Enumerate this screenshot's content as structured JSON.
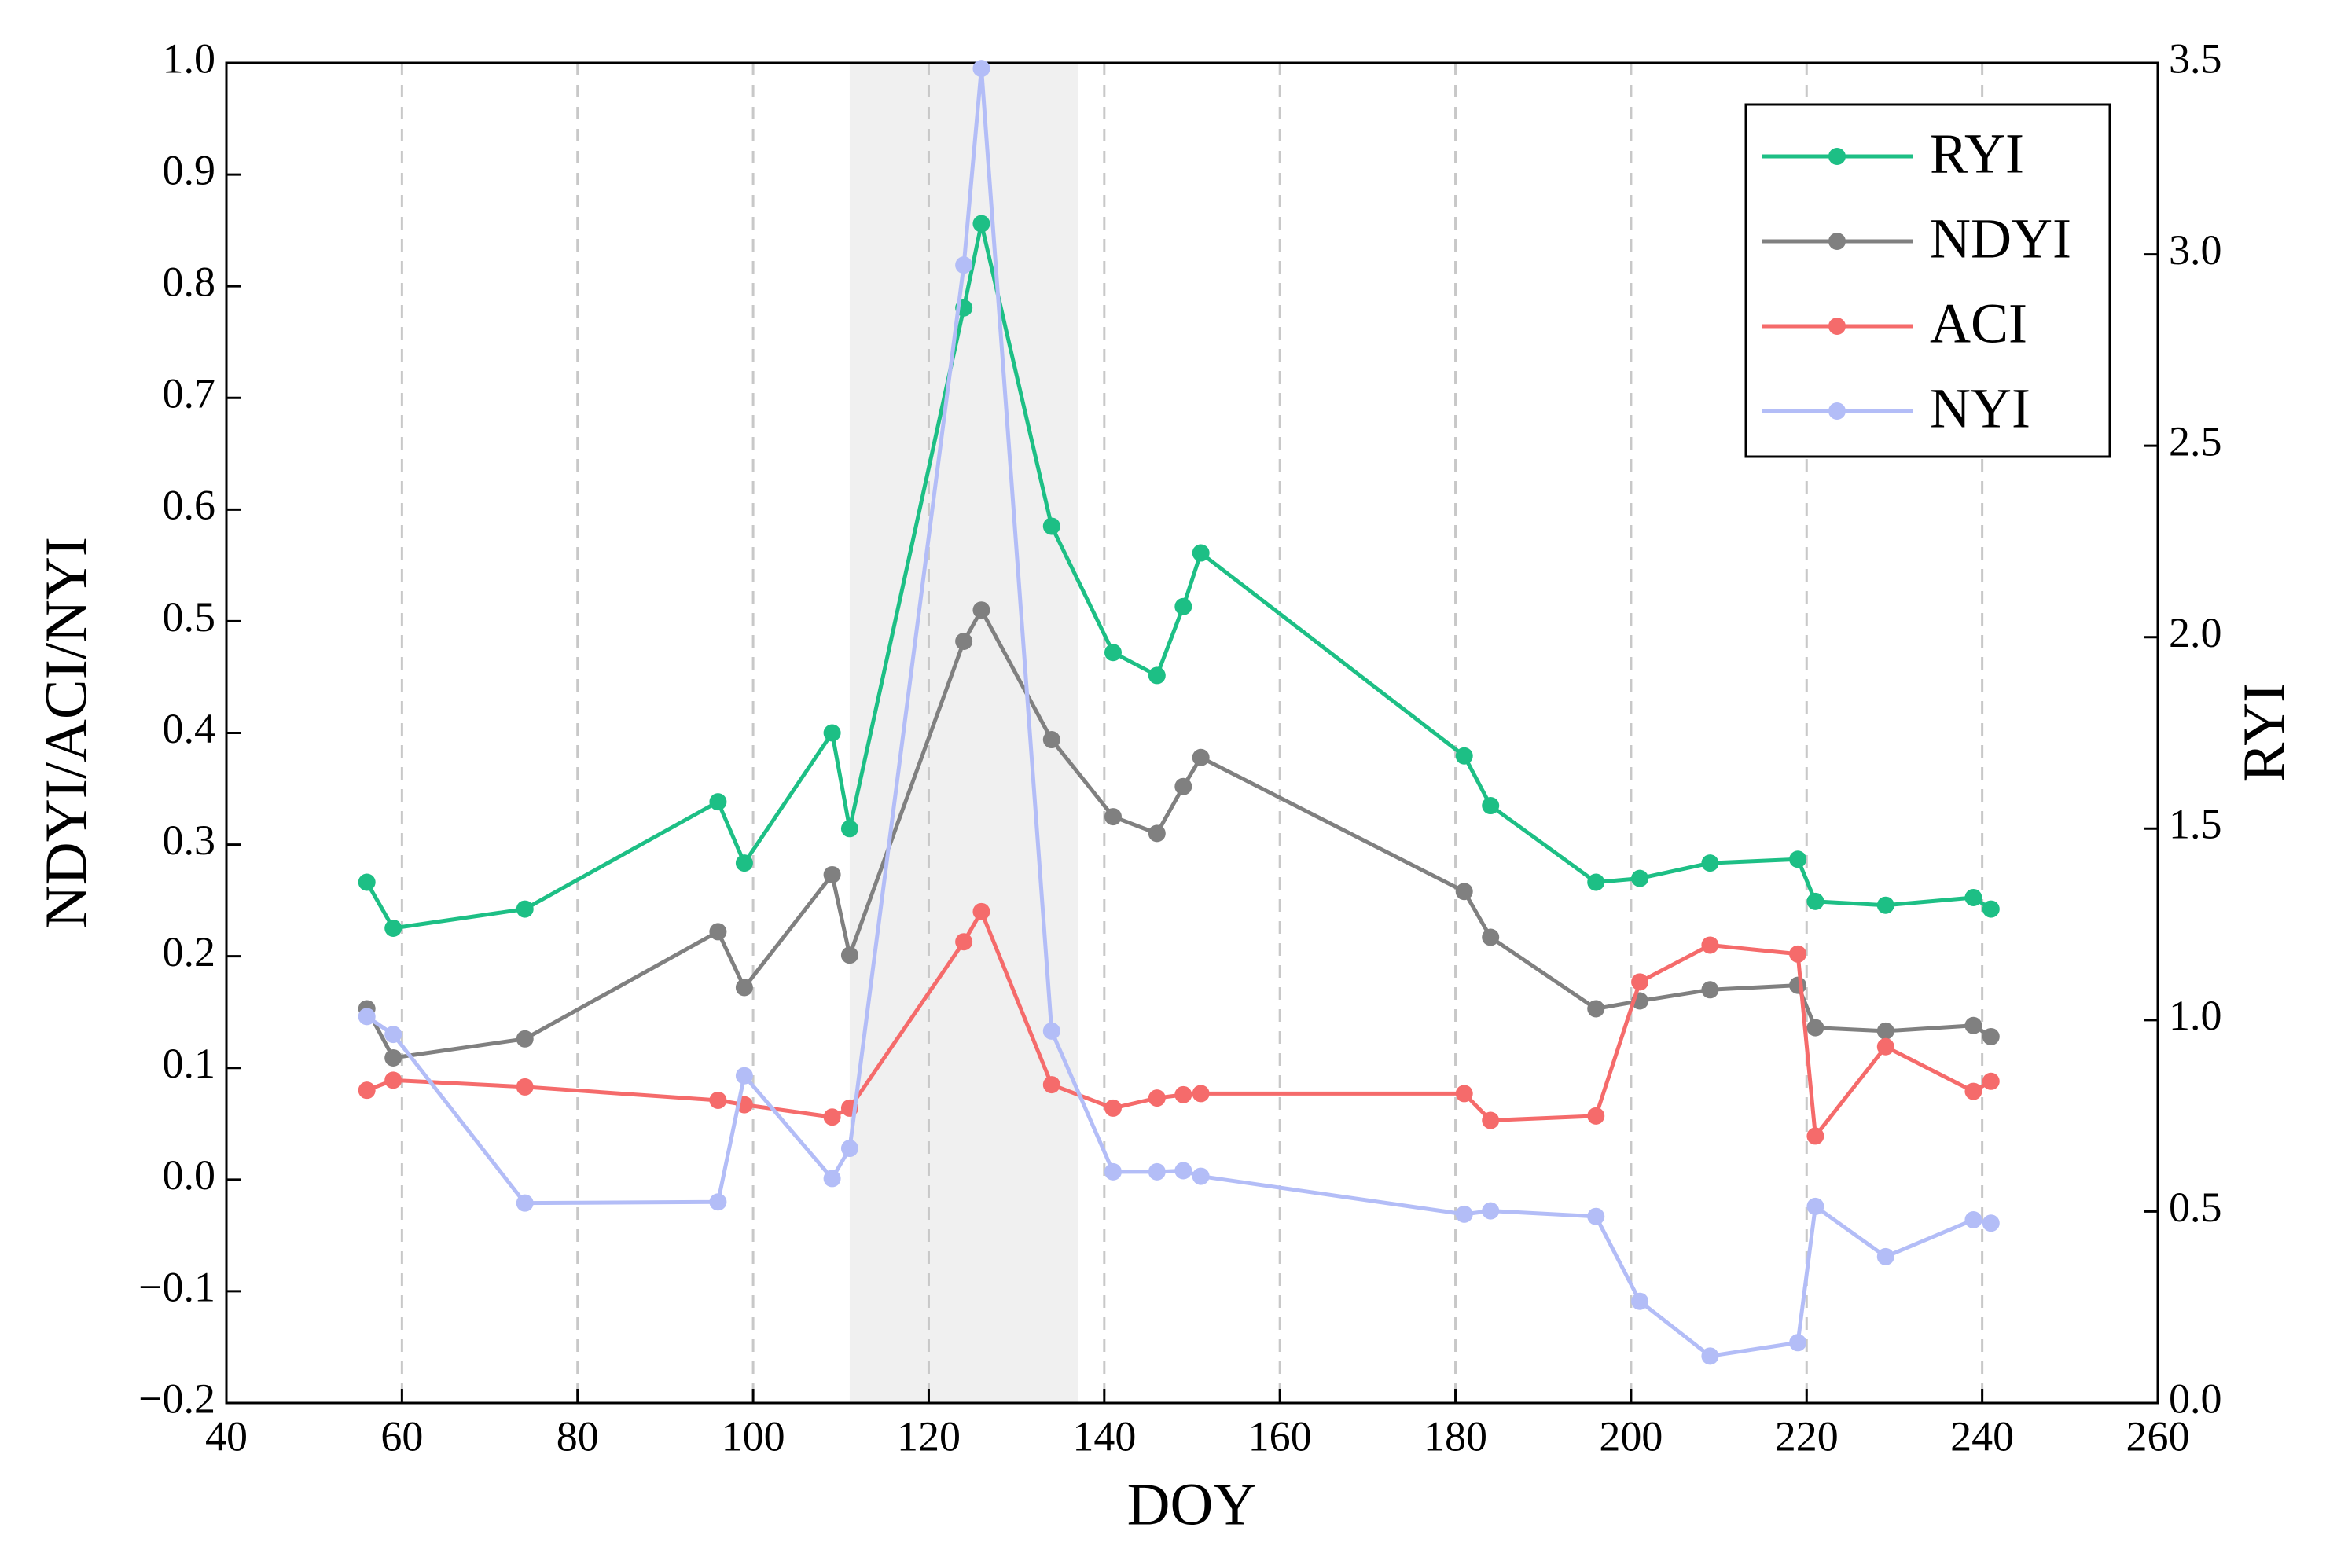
{
  "chart_data": {
    "type": "line",
    "x_label": "DOY",
    "y_label": "NDYI/ACI/NYI",
    "y2_label": "RYI",
    "x": [
      56,
      59,
      74,
      96,
      99,
      109,
      111,
      124,
      126,
      134,
      141,
      146,
      149,
      151,
      181,
      184,
      196,
      201,
      209,
      219,
      221,
      229,
      239,
      241
    ],
    "series": [
      {
        "name": "RYI",
        "color": "#1dbf85",
        "axis": "y2",
        "values": [
          1.36,
          1.24,
          1.29,
          1.57,
          1.41,
          1.75,
          1.5,
          2.86,
          3.08,
          2.29,
          1.96,
          1.9,
          2.08,
          2.22,
          1.69,
          1.56,
          1.36,
          1.37,
          1.41,
          1.42,
          1.31,
          1.3,
          1.32,
          1.29
        ]
      },
      {
        "name": "NDYI",
        "color": "#808080",
        "values": [
          0.153,
          0.109,
          0.126,
          0.222,
          0.172,
          0.273,
          0.201,
          0.482,
          0.51,
          0.394,
          0.325,
          0.31,
          0.352,
          0.378,
          0.258,
          0.217,
          0.153,
          0.16,
          0.17,
          0.174,
          0.136,
          0.133,
          0.138,
          0.128
        ]
      },
      {
        "name": "ACI",
        "color": "#f56b6b",
        "values": [
          0.08,
          0.089,
          0.083,
          0.071,
          0.067,
          0.056,
          0.064,
          0.213,
          0.24,
          0.085,
          0.064,
          0.073,
          0.076,
          0.077,
          0.077,
          0.053,
          0.057,
          0.177,
          0.21,
          0.202,
          0.039,
          0.119,
          0.079,
          0.088
        ]
      },
      {
        "name": "NYI",
        "color": "#b3bdf7",
        "values": [
          0.146,
          0.13,
          -0.021,
          -0.02,
          0.093,
          0.001,
          0.028,
          0.819,
          0.995,
          0.133,
          0.007,
          0.007,
          0.008,
          0.003,
          -0.031,
          -0.028,
          -0.033,
          -0.109,
          -0.158,
          -0.146,
          -0.024,
          -0.069,
          -0.036,
          -0.039
        ]
      }
    ],
    "xlim": [
      40,
      260
    ],
    "xticks": [
      40,
      60,
      80,
      100,
      120,
      140,
      160,
      180,
      200,
      220,
      240,
      260
    ],
    "ylim": [
      -0.2,
      1.0
    ],
    "yticks": [
      {
        "value": -0.2,
        "label": "−0.2"
      },
      {
        "value": -0.1,
        "label": "−0.1"
      },
      {
        "value": 0,
        "label": "0.0"
      },
      0.1,
      0.2,
      0.3,
      0.4,
      0.5,
      0.6,
      0.7,
      0.8,
      0.9,
      {
        "value": 1,
        "label": "1.0"
      }
    ],
    "y2lim": [
      0,
      3.5
    ],
    "y2ticks": [
      {
        "value": 0,
        "label": "0.0"
      },
      0.5,
      {
        "value": 1,
        "label": "1.0"
      },
      1.5,
      {
        "value": 2,
        "label": "2.0"
      },
      2.5,
      {
        "value": 3,
        "label": "3.0"
      },
      3.5
    ],
    "shaded_region": [
      111,
      137
    ],
    "shade_color": "#f0f0f0",
    "grid": "x",
    "legend_position": "upper right"
  }
}
